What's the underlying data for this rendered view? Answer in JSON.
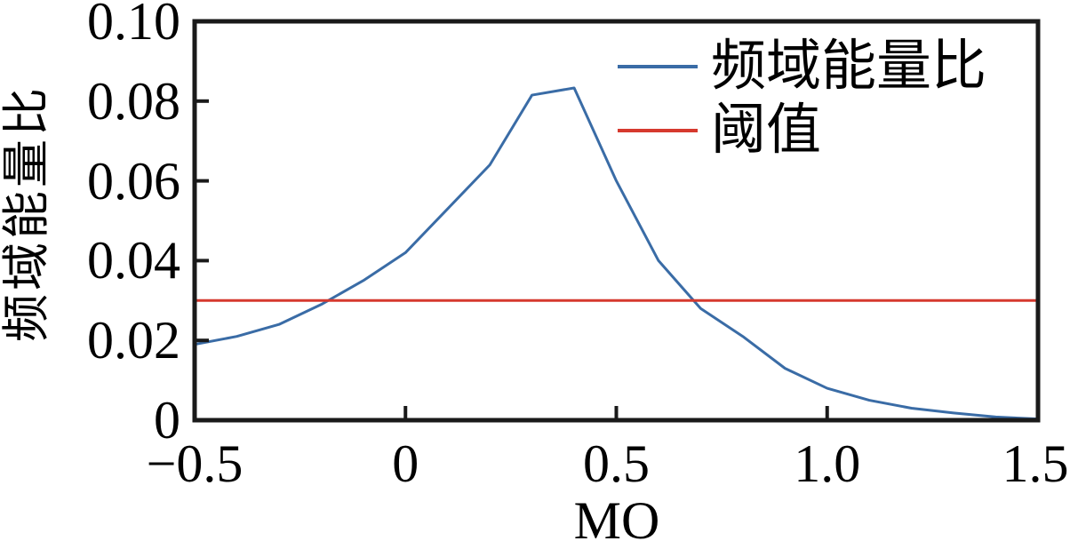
{
  "chart_data": {
    "type": "line",
    "title": "",
    "xlabel": "MO",
    "ylabel": "频域能量比",
    "xlim": [
      -0.5,
      1.5
    ],
    "ylim": [
      0,
      0.1
    ],
    "grid": false,
    "axis_color": "#1a1a1a",
    "x_tick_values": [
      -0.5,
      0,
      0.5,
      1.0,
      1.5
    ],
    "x_tick_labels": [
      "−0.5",
      "0",
      "0.5",
      "1.0",
      "1.5"
    ],
    "y_tick_values": [
      0,
      0.02,
      0.04,
      0.06,
      0.08,
      0.1
    ],
    "y_tick_labels": [
      "0",
      "0.02",
      "0.04",
      "0.06",
      "0.08",
      "0.10"
    ],
    "x": [
      -0.5,
      -0.4,
      -0.3,
      -0.2,
      -0.1,
      0,
      0.1,
      0.2,
      0.3,
      0.4,
      0.5,
      0.6,
      0.7,
      0.8,
      0.9,
      1.0,
      1.1,
      1.2,
      1.3,
      1.4,
      1.5
    ],
    "series": [
      {
        "name": "频域能量比",
        "color": "#3A6CA6",
        "values": [
          0.019,
          0.021,
          0.024,
          0.029,
          0.035,
          0.042,
          0.053,
          0.064,
          0.0815,
          0.0833,
          0.06,
          0.04,
          0.028,
          0.021,
          0.013,
          0.008,
          0.005,
          0.003,
          0.0018,
          0.0008,
          0.0003
        ]
      }
    ],
    "threshold": {
      "name": "阈值",
      "value": 0.03,
      "color": "#D6392E"
    },
    "legend": {
      "position": "top-right",
      "items": [
        {
          "label": "频域能量比",
          "color": "#3A6CA6"
        },
        {
          "label": "阈值",
          "color": "#D6392E"
        }
      ]
    }
  }
}
